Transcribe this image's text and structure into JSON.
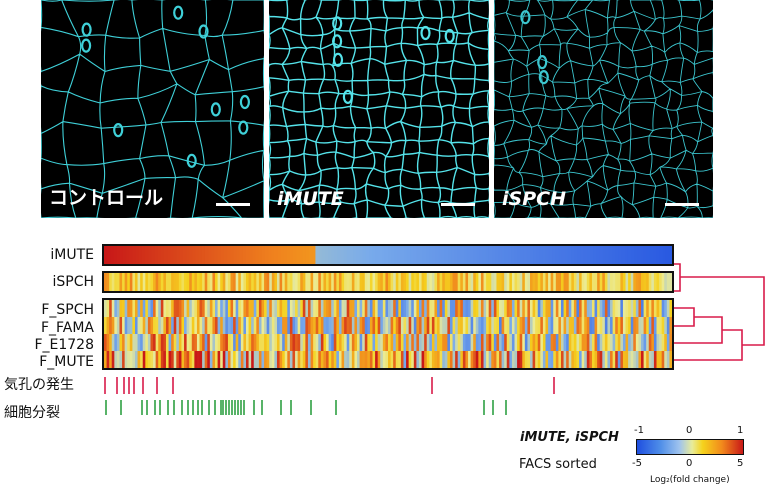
{
  "micrographs": [
    {
      "label": "コントロール",
      "italic": false
    },
    {
      "label": "iMUTE",
      "italic": true
    },
    {
      "label": "iSPCH",
      "italic": true
    }
  ],
  "heatmap": {
    "rows": [
      {
        "label": "iMUTE"
      },
      {
        "label": "iSPCH"
      },
      {
        "label": "F_SPCH"
      },
      {
        "label": "F_FAMA"
      },
      {
        "label": "F_E1728"
      },
      {
        "label": "F_MUTE"
      }
    ],
    "annotation_rows": [
      {
        "label": "気孔の発生",
        "color": "#d81b4a"
      },
      {
        "label": "細胞分裂",
        "color": "#2ea043"
      }
    ]
  },
  "legend": {
    "row1_label": "iMUTE, iSPCH",
    "row1_ticks": [
      "-1",
      "0",
      "1"
    ],
    "row2_label": "FACS sorted",
    "row2_ticks": [
      "-5",
      "0",
      "5"
    ],
    "axis_caption": "Log₂(fold change)"
  },
  "colors": {
    "dendrogram": "#d81b4a",
    "stomata_marks": "#d81b4a",
    "division_marks": "#2ea043"
  }
}
